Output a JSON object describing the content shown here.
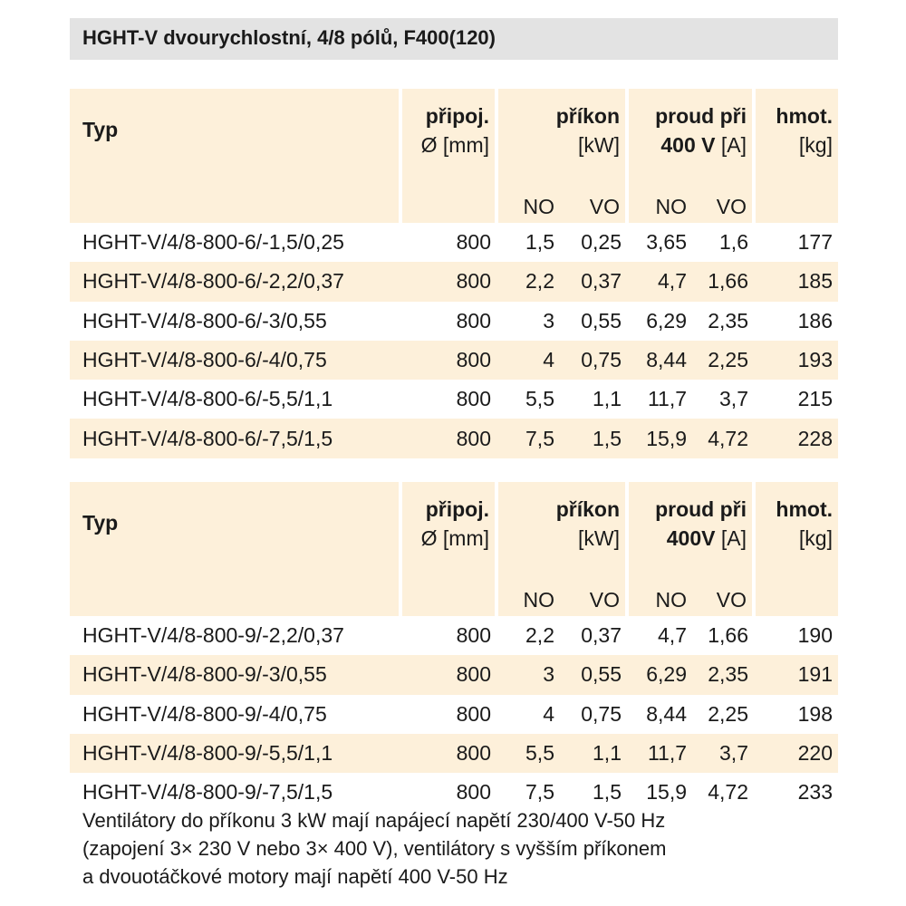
{
  "title": "HGHT-V dvourychlostní, 4/8 pólů, F400(120)",
  "headers": {
    "typ": "Typ",
    "pripoj_1": "připoj.",
    "pripoj_2": "Ø [mm]",
    "prikon_1": "příkon",
    "prikon_2": "[kW]",
    "proud_1": "proud při",
    "proud_2_bold_a": "400 V",
    "proud_2_bold_b": "400V",
    "proud_2_unit": "[A]",
    "hmot_1": "hmot.",
    "hmot_2": "[kg]",
    "no": "NO",
    "vo": "VO"
  },
  "table1": [
    {
      "typ": "HGHT-V/4/8-800-6/-1,5/0,25",
      "pripoj": "800",
      "prikon_no": "1,5",
      "prikon_vo": "0,25",
      "proud_no": "3,65",
      "proud_vo": "1,6",
      "hmot": "177"
    },
    {
      "typ": "HGHT-V/4/8-800-6/-2,2/0,37",
      "pripoj": "800",
      "prikon_no": "2,2",
      "prikon_vo": "0,37",
      "proud_no": "4,7",
      "proud_vo": "1,66",
      "hmot": "185"
    },
    {
      "typ": "HGHT-V/4/8-800-6/-3/0,55",
      "pripoj": "800",
      "prikon_no": "3",
      "prikon_vo": "0,55",
      "proud_no": "6,29",
      "proud_vo": "2,35",
      "hmot": "186"
    },
    {
      "typ": "HGHT-V/4/8-800-6/-4/0,75",
      "pripoj": "800",
      "prikon_no": "4",
      "prikon_vo": "0,75",
      "proud_no": "8,44",
      "proud_vo": "2,25",
      "hmot": "193"
    },
    {
      "typ": "HGHT-V/4/8-800-6/-5,5/1,1",
      "pripoj": "800",
      "prikon_no": "5,5",
      "prikon_vo": "1,1",
      "proud_no": "11,7",
      "proud_vo": "3,7",
      "hmot": "215"
    },
    {
      "typ": "HGHT-V/4/8-800-6/-7,5/1,5",
      "pripoj": "800",
      "prikon_no": "7,5",
      "prikon_vo": "1,5",
      "proud_no": "15,9",
      "proud_vo": "4,72",
      "hmot": "228"
    }
  ],
  "table2": [
    {
      "typ": "HGHT-V/4/8-800-9/-2,2/0,37",
      "pripoj": "800",
      "prikon_no": "2,2",
      "prikon_vo": "0,37",
      "proud_no": "4,7",
      "proud_vo": "1,66",
      "hmot": "190"
    },
    {
      "typ": "HGHT-V/4/8-800-9/-3/0,55",
      "pripoj": "800",
      "prikon_no": "3",
      "prikon_vo": "0,55",
      "proud_no": "6,29",
      "proud_vo": "2,35",
      "hmot": "191"
    },
    {
      "typ": "HGHT-V/4/8-800-9/-4/0,75",
      "pripoj": "800",
      "prikon_no": "4",
      "prikon_vo": "0,75",
      "proud_no": "8,44",
      "proud_vo": "2,25",
      "hmot": "198"
    },
    {
      "typ": "HGHT-V/4/8-800-9/-5,5/1,1",
      "pripoj": "800",
      "prikon_no": "5,5",
      "prikon_vo": "1,1",
      "proud_no": "11,7",
      "proud_vo": "3,7",
      "hmot": "220"
    },
    {
      "typ": "HGHT-V/4/8-800-9/-7,5/1,5",
      "pripoj": "800",
      "prikon_no": "7,5",
      "prikon_vo": "1,5",
      "proud_no": "15,9",
      "proud_vo": "4,72",
      "hmot": "233"
    }
  ],
  "note": {
    "line1": "Ventilátory do příkonu 3 kW mají napájecí napětí 230/400 V-50 Hz",
    "line2": "(zapojení 3× 230 V nebo 3× 400 V), ventilátory s vyšším příkonem",
    "line3": "a dvouotáčkové motory mají napětí 400 V-50 Hz"
  },
  "colors": {
    "title_bg": "#e3e3e3",
    "header_bg": "#fdf0da",
    "alt_row_bg": "#fdf0da"
  }
}
